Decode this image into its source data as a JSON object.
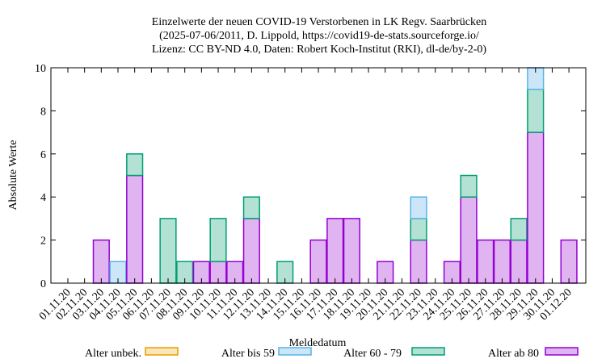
{
  "chart_data": {
    "type": "bar",
    "stacked": true,
    "title": [
      "Einzelwerte der neuen COVID-19 Verstorbenen in LK Regv. Saarbrücken",
      "(2025-07-06/2011, D. Lippold, https://covid19-de-stats.sourceforge.io/",
      "Lizenz: CC BY-ND 4.0, Daten: Robert Koch-Institut (RKI), dl-de/by-2-0)"
    ],
    "xlabel": "Meldedatum",
    "ylabel": "Absolute Werte",
    "ylim": [
      0,
      10
    ],
    "yticks": [
      0,
      2,
      4,
      6,
      8,
      10
    ],
    "grid": false,
    "legend_position": "bottom",
    "categories": [
      "01.11.20",
      "02.11.20",
      "03.11.20",
      "04.11.20",
      "05.11.20",
      "06.11.20",
      "07.11.20",
      "08.11.20",
      "09.11.20",
      "10.11.20",
      "11.11.20",
      "12.11.20",
      "13.11.20",
      "14.11.20",
      "15.11.20",
      "16.11.20",
      "17.11.20",
      "18.11.20",
      "19.11.20",
      "20.11.20",
      "21.11.20",
      "22.11.20",
      "23.11.20",
      "24.11.20",
      "25.11.20",
      "26.11.20",
      "27.11.20",
      "28.11.20",
      "29.11.20",
      "30.11.20",
      "01.12.20"
    ],
    "series": [
      {
        "name": "Alter ab 80",
        "fill": "#e0b4f0",
        "stroke": "#9400d3",
        "values": [
          0,
          0,
          2,
          0,
          5,
          0,
          0,
          0,
          1,
          1,
          1,
          3,
          0,
          0,
          0,
          2,
          3,
          3,
          0,
          1,
          0,
          2,
          0,
          1,
          4,
          2,
          2,
          2,
          7,
          0,
          2
        ]
      },
      {
        "name": "Alter 60 - 79",
        "fill": "#b3e2d5",
        "stroke": "#009e73",
        "values": [
          0,
          0,
          0,
          0,
          1,
          0,
          3,
          1,
          0,
          2,
          0,
          1,
          0,
          1,
          0,
          0,
          0,
          0,
          0,
          0,
          0,
          1,
          0,
          0,
          1,
          0,
          0,
          1,
          2,
          0,
          0
        ]
      },
      {
        "name": "Alter bis 59",
        "fill": "#cce6f8",
        "stroke": "#56b4e9",
        "values": [
          0,
          0,
          0,
          1,
          0,
          0,
          0,
          0,
          0,
          0,
          0,
          0,
          0,
          0,
          0,
          0,
          0,
          0,
          0,
          0,
          0,
          1,
          0,
          0,
          0,
          0,
          0,
          0,
          1,
          0,
          0
        ]
      },
      {
        "name": "Alter unbek.",
        "fill": "#fae6b8",
        "stroke": "#e69f00",
        "values": [
          0,
          0,
          0,
          0,
          0,
          0,
          0,
          0,
          0,
          0,
          0,
          0,
          0,
          0,
          0,
          0,
          0,
          0,
          0,
          0,
          0,
          0,
          0,
          0,
          0,
          0,
          0,
          0,
          0,
          0,
          0
        ]
      }
    ],
    "legend_order": [
      "Alter unbek.",
      "Alter bis 59",
      "Alter 60 - 79",
      "Alter ab 80"
    ]
  }
}
